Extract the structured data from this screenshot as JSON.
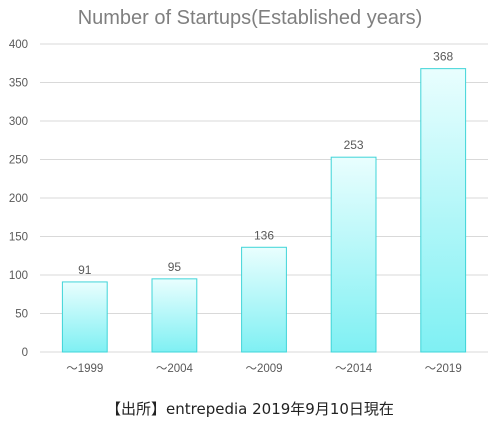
{
  "chart_data": {
    "type": "bar",
    "title": "Number of Startups(Established years)",
    "categories": [
      "～1999",
      "～2004",
      "～2009",
      "～2014",
      "～2019"
    ],
    "values": [
      91,
      95,
      136,
      253,
      368
    ],
    "ylim": [
      0,
      400
    ],
    "yticks": [
      0,
      50,
      100,
      150,
      200,
      250,
      300,
      350,
      400
    ],
    "grid": true,
    "legend": "none",
    "bar_fill_top": "#e9fefe",
    "bar_fill_bottom": "#7ff0f3",
    "bar_stroke": "#3fd4d8",
    "gridline_color": "#d9d9d9"
  },
  "footnote": "【出所】entrepedia 2019年9月10日現在"
}
